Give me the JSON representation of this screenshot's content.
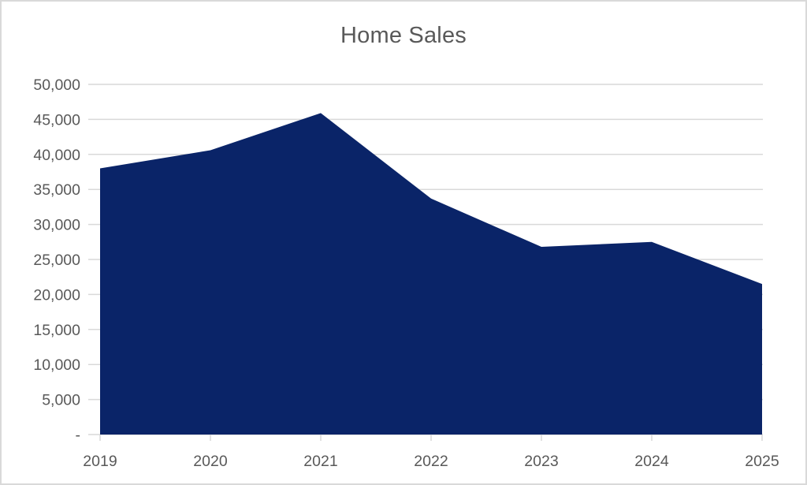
{
  "chart_data": {
    "type": "area",
    "title": "Home Sales",
    "categories": [
      "2019",
      "2020",
      "2021",
      "2022",
      "2023",
      "2024",
      "2025"
    ],
    "series": [
      {
        "name": "Home Sales",
        "values": [
          38000,
          40600,
          45900,
          33700,
          26800,
          27500,
          21500
        ]
      }
    ],
    "ylim": [
      0,
      50000
    ],
    "ytick_interval": 5000,
    "ytick_labels": [
      "-",
      "5,000",
      "10,000",
      "15,000",
      "20,000",
      "25,000",
      "30,000",
      "35,000",
      "40,000",
      "45,000",
      "50,000"
    ],
    "xlabel": "",
    "ylabel": "",
    "grid": true,
    "legend": "none"
  },
  "styles": {
    "area_fill": "#0a2468",
    "title_color": "#595959",
    "axis_label_color": "#595959",
    "gridline_color": "#d9d9d9",
    "axis_line_color": "#d9d9d9",
    "page_border_color": "#d9d9d9",
    "background": "#ffffff"
  }
}
